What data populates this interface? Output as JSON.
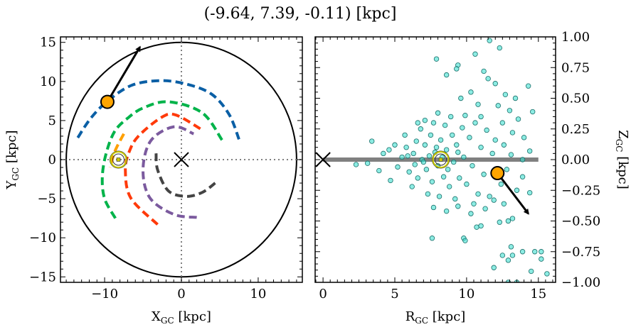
{
  "title": "(-9.64, 7.39, -0.11) [kpc]",
  "chart_data": [
    {
      "type": "line",
      "panel": "left",
      "xlabel": {
        "main": "X",
        "sub": "GC",
        "unit": " [kpc]"
      },
      "ylabel": {
        "main": "Y",
        "sub": "GC",
        "unit": " [kpc]"
      },
      "xlim": [
        -15.75,
        15.75
      ],
      "ylim": [
        -15.7,
        15.7
      ],
      "xticks": [
        -10,
        0,
        10
      ],
      "xtick_labels": [
        "−10",
        "0",
        "10"
      ],
      "yticks": [
        -15,
        -10,
        -5,
        0,
        5,
        10,
        15
      ],
      "ytick_labels": [
        "−15",
        "−10",
        "−5",
        "0",
        "5",
        "10",
        "15"
      ],
      "boundary_circle_radius": 15,
      "guide_lines": {
        "x": 0,
        "y": 0,
        "style": "dotted",
        "color": "#808080"
      },
      "series": [
        {
          "color": "#0a5fa5",
          "style": "dashed",
          "x": [
            -13.5,
            -11.8,
            -9.6,
            -6.5,
            -2.9,
            0.5,
            3.9,
            6.2,
            7.5
          ],
          "y": [
            2.8,
            5.3,
            7.5,
            9.5,
            10.1,
            9.7,
            8.4,
            5.8,
            2.6
          ]
        },
        {
          "color": "#00b34a",
          "style": "dashed",
          "x": [
            -8.6,
            -10.0,
            -10.3,
            -9.8,
            -8.7,
            -7.0,
            -5.0,
            -1.7,
            2.7,
            5.3
          ],
          "y": [
            -7.5,
            -5.0,
            -2.2,
            0.8,
            3.6,
            5.3,
            6.6,
            7.4,
            6.0,
            2.5
          ]
        },
        {
          "color": "#ff3a0a",
          "style": "dashed",
          "x": [
            -3.1,
            -6.6,
            -7.3,
            -6.8,
            -5.6,
            -2.6,
            -0.7,
            2.7
          ],
          "y": [
            -8.3,
            -4.9,
            -1.3,
            1.0,
            3.0,
            5.4,
            5.7,
            3.8
          ]
        },
        {
          "color": "#7b5a9e",
          "style": "dashed",
          "x": [
            2.0,
            -1.0,
            -4.1,
            -5.0,
            -4.0,
            -1.0,
            1.6
          ],
          "y": [
            -7.4,
            -7.0,
            -4.9,
            -1.3,
            2.4,
            4.2,
            3.3
          ]
        },
        {
          "color": "#444444",
          "style": "dashed",
          "x": [
            -3.3,
            -3.1,
            -1.7,
            0.6,
            2.7,
            4.4
          ],
          "y": [
            0.8,
            -1.3,
            -4.0,
            -4.7,
            -4.2,
            -3.0
          ]
        },
        {
          "color": "#ffa000",
          "style": "dashed",
          "x": [
            -7.5,
            -8.6,
            -9.3
          ],
          "y": [
            3.3,
            1.2,
            -1.0
          ]
        }
      ],
      "markers": {
        "galactic_center": {
          "x": 0,
          "y": 0,
          "symbol": "x",
          "color": "#000000"
        },
        "sun": {
          "x": -8.2,
          "y": 0,
          "symbol": "sun",
          "color": "#c8c800"
        },
        "object": {
          "x": -9.64,
          "y": 7.39,
          "color": "#ffa500"
        },
        "velocity_arrow": {
          "x0": -9.64,
          "y0": 7.39,
          "x1": -5.4,
          "y1": 14.4
        }
      }
    },
    {
      "type": "scatter",
      "panel": "right",
      "xlabel": {
        "main": "R",
        "sub": "GC",
        "unit": " [kpc]"
      },
      "ylabel": {
        "main": "Z",
        "sub": "GC",
        "unit": " [kpc]"
      },
      "xlim": [
        -0.55,
        16.2
      ],
      "ylim": [
        -1.0,
        1.0
      ],
      "xticks": [
        0,
        5,
        10,
        15
      ],
      "xtick_labels": [
        "0",
        "5",
        "10",
        "15"
      ],
      "yticks": [
        -1.0,
        -0.75,
        -0.5,
        -0.25,
        0.0,
        0.25,
        0.5,
        0.75,
        1.0
      ],
      "ytick_labels": [
        "−1.00",
        "−0.75",
        "−0.50",
        "−0.25",
        "0.00",
        "0.25",
        "0.50",
        "0.75",
        "1.00"
      ],
      "disk_line": {
        "x0": 0,
        "x1": 15,
        "z": 0,
        "color": "#808080"
      },
      "point_color": "#40e0d0",
      "point_edge": "#1a6f6a",
      "points": [
        [
          11.6,
          0.97
        ],
        [
          12.3,
          0.91
        ],
        [
          7.9,
          0.82
        ],
        [
          10.6,
          0.86
        ],
        [
          8.6,
          0.69
        ],
        [
          9.4,
          0.77
        ],
        [
          9.3,
          0.74
        ],
        [
          14.3,
          0.6
        ],
        [
          14.6,
          0.39
        ],
        [
          11.2,
          0.72
        ],
        [
          12.0,
          0.62
        ],
        [
          11.5,
          0.66
        ],
        [
          12.7,
          0.53
        ],
        [
          13.4,
          0.5
        ],
        [
          10.3,
          0.55
        ],
        [
          9.6,
          0.5
        ],
        [
          10.8,
          0.45
        ],
        [
          12.2,
          0.44
        ],
        [
          13.0,
          0.4
        ],
        [
          13.6,
          0.33
        ],
        [
          8.0,
          0.38
        ],
        [
          7.1,
          0.32
        ],
        [
          6.6,
          0.3
        ],
        [
          8.9,
          0.35
        ],
        [
          11.0,
          0.35
        ],
        [
          12.5,
          0.3
        ],
        [
          13.2,
          0.22
        ],
        [
          14.0,
          0.18
        ],
        [
          3.4,
          0.15
        ],
        [
          2.3,
          -0.04
        ],
        [
          3.1,
          -0.03
        ],
        [
          3.9,
          -0.09
        ],
        [
          4.7,
          -0.17
        ],
        [
          4.2,
          0.05
        ],
        [
          4.6,
          0.08
        ],
        [
          5.0,
          0.12
        ],
        [
          5.2,
          -0.06
        ],
        [
          5.5,
          0.02
        ],
        [
          5.8,
          0.1
        ],
        [
          6.0,
          -0.1
        ],
        [
          6.3,
          0.05
        ],
        [
          6.5,
          0.15
        ],
        [
          6.6,
          -0.15
        ],
        [
          6.9,
          0.0
        ],
        [
          7.1,
          0.12
        ],
        [
          7.2,
          -0.08
        ],
        [
          7.5,
          0.2
        ],
        [
          7.6,
          -0.18
        ],
        [
          7.8,
          0.06
        ],
        [
          8.0,
          -0.05
        ],
        [
          8.2,
          0.16
        ],
        [
          8.4,
          -0.14
        ],
        [
          8.6,
          0.08
        ],
        [
          8.8,
          -0.22
        ],
        [
          9.0,
          0.2
        ],
        [
          9.1,
          -0.02
        ],
        [
          9.3,
          0.12
        ],
        [
          9.5,
          -0.15
        ],
        [
          9.7,
          0.26
        ],
        [
          9.8,
          0.02
        ],
        [
          10.0,
          -0.2
        ],
        [
          10.2,
          0.18
        ],
        [
          10.4,
          -0.05
        ],
        [
          10.6,
          0.3
        ],
        [
          10.8,
          -0.28
        ],
        [
          11.0,
          0.1
        ],
        [
          11.2,
          -0.12
        ],
        [
          11.4,
          0.24
        ],
        [
          11.6,
          -0.3
        ],
        [
          11.8,
          0.05
        ],
        [
          12.0,
          0.16
        ],
        [
          12.4,
          -0.2
        ],
        [
          12.6,
          0.12
        ],
        [
          12.8,
          -0.08
        ],
        [
          13.1,
          0.04
        ],
        [
          13.5,
          -0.25
        ],
        [
          13.9,
          0.0
        ],
        [
          14.4,
          0.07
        ],
        [
          13.9,
          -0.14
        ],
        [
          14.4,
          -0.27
        ],
        [
          5.7,
          0.2
        ],
        [
          6.2,
          -0.22
        ],
        [
          6.8,
          0.25
        ],
        [
          7.3,
          -0.28
        ],
        [
          7.7,
          0.3
        ],
        [
          8.1,
          -0.3
        ],
        [
          8.5,
          0.28
        ],
        [
          9.2,
          -0.32
        ],
        [
          9.9,
          0.36
        ],
        [
          10.5,
          -0.36
        ],
        [
          7.0,
          -0.02
        ],
        [
          7.4,
          0.03
        ],
        [
          7.9,
          0.1
        ],
        [
          8.3,
          0.02
        ],
        [
          8.7,
          -0.08
        ],
        [
          9.4,
          0.06
        ],
        [
          6.4,
          -0.04
        ],
        [
          5.9,
          0.03
        ],
        [
          7.7,
          -0.39
        ],
        [
          8.6,
          -0.42
        ],
        [
          9.4,
          -0.38
        ],
        [
          10.3,
          -0.44
        ],
        [
          10.7,
          -0.55
        ],
        [
          11.0,
          -0.54
        ],
        [
          11.3,
          -0.4
        ],
        [
          12.3,
          -0.51
        ],
        [
          13.2,
          -0.48
        ],
        [
          12.9,
          -0.5
        ],
        [
          11.9,
          -0.33
        ],
        [
          12.6,
          -0.36
        ],
        [
          7.6,
          -0.64
        ],
        [
          9.8,
          -0.64
        ],
        [
          9.9,
          -0.66
        ],
        [
          13.9,
          -0.75
        ],
        [
          14.75,
          -0.75
        ],
        [
          15.2,
          -0.75
        ],
        [
          15.2,
          -0.81
        ],
        [
          14.5,
          -0.91
        ],
        [
          15.6,
          -0.93
        ],
        [
          13.1,
          -0.71
        ],
        [
          12.5,
          -0.78
        ],
        [
          13.2,
          -0.78
        ],
        [
          12.9,
          -0.82
        ],
        [
          11.9,
          -0.88
        ],
        [
          12.9,
          -1.0
        ],
        [
          13.5,
          -1.0
        ]
      ],
      "markers": {
        "galactic_center": {
          "x": 0,
          "y": 0,
          "symbol": "x",
          "color": "#000000"
        },
        "sun": {
          "x": 8.2,
          "y": 0,
          "symbol": "sun",
          "color": "#c8c800"
        },
        "object": {
          "x": 12.15,
          "y": -0.11,
          "color": "#ffa500"
        },
        "velocity_arrow": {
          "x0": 12.15,
          "y0": -0.11,
          "x1": 14.3,
          "y1": -0.44
        }
      }
    }
  ]
}
